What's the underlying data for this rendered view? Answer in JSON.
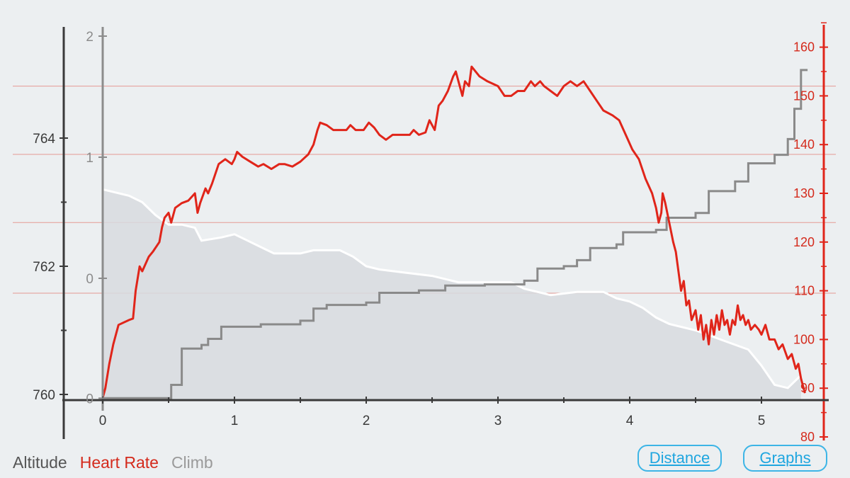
{
  "legend": {
    "altitude": {
      "label": "Altitude",
      "color": "#555555"
    },
    "heart_rate": {
      "label": "Heart Rate",
      "color": "#d42a1c"
    },
    "climb": {
      "label": "Climb",
      "color": "#9a9a9a"
    }
  },
  "buttons": {
    "distance": "Distance",
    "graphs": "Graphs"
  },
  "chart_data": {
    "type": "line",
    "title": "",
    "xlabel": "",
    "x_ticks": [
      "0",
      "1",
      "2",
      "3",
      "4",
      "5"
    ],
    "xlim": [
      0,
      5.35
    ],
    "axes": {
      "altitude": {
        "ticks": [
          "760",
          "762",
          "764"
        ],
        "ylim": [
          760,
          765
        ]
      },
      "climb": {
        "ticks": [
          "0",
          "0",
          "1",
          "2"
        ],
        "ylim": [
          -0.98,
          2
        ]
      },
      "heart_rate": {
        "ticks": [
          "80",
          "90",
          "100",
          "110",
          "120",
          "130",
          "140",
          "150",
          "160"
        ],
        "ylim": [
          80,
          160
        ]
      }
    },
    "series": [
      {
        "name": "Altitude",
        "axis": "altitude",
        "style": "area",
        "color": "#ffffff",
        "fill": "#d8dadf",
        "points": [
          [
            0,
            763.2
          ],
          [
            0.1,
            763.15
          ],
          [
            0.2,
            763.1
          ],
          [
            0.3,
            763.0
          ],
          [
            0.4,
            762.8
          ],
          [
            0.5,
            762.65
          ],
          [
            0.6,
            762.65
          ],
          [
            0.7,
            762.6
          ],
          [
            0.75,
            762.4
          ],
          [
            0.9,
            762.45
          ],
          [
            1.0,
            762.5
          ],
          [
            1.1,
            762.4
          ],
          [
            1.2,
            762.3
          ],
          [
            1.3,
            762.2
          ],
          [
            1.4,
            762.2
          ],
          [
            1.5,
            762.2
          ],
          [
            1.6,
            762.25
          ],
          [
            1.8,
            762.25
          ],
          [
            1.9,
            762.15
          ],
          [
            2.0,
            762.0
          ],
          [
            2.1,
            761.95
          ],
          [
            2.3,
            761.9
          ],
          [
            2.5,
            761.85
          ],
          [
            2.7,
            761.75
          ],
          [
            3.0,
            761.75
          ],
          [
            3.1,
            761.75
          ],
          [
            3.2,
            761.65
          ],
          [
            3.4,
            761.55
          ],
          [
            3.6,
            761.6
          ],
          [
            3.8,
            761.6
          ],
          [
            3.9,
            761.5
          ],
          [
            4.0,
            761.45
          ],
          [
            4.1,
            761.35
          ],
          [
            4.2,
            761.2
          ],
          [
            4.3,
            761.1
          ],
          [
            4.5,
            761.0
          ],
          [
            4.7,
            760.85
          ],
          [
            4.9,
            760.7
          ],
          [
            5.0,
            760.45
          ],
          [
            5.1,
            760.15
          ],
          [
            5.2,
            760.1
          ],
          [
            5.3,
            760.3
          ]
        ]
      },
      {
        "name": "Climb",
        "axis": "climb",
        "style": "line",
        "color": "#8a8a8a",
        "points": [
          [
            0,
            -0.99
          ],
          [
            0.48,
            -0.99
          ],
          [
            0.52,
            -0.88
          ],
          [
            0.6,
            -0.58
          ],
          [
            0.75,
            -0.55
          ],
          [
            0.8,
            -0.5
          ],
          [
            0.9,
            -0.4
          ],
          [
            1.2,
            -0.38
          ],
          [
            1.5,
            -0.35
          ],
          [
            1.6,
            -0.25
          ],
          [
            1.7,
            -0.22
          ],
          [
            2.0,
            -0.2
          ],
          [
            2.1,
            -0.12
          ],
          [
            2.4,
            -0.1
          ],
          [
            2.6,
            -0.06
          ],
          [
            2.9,
            -0.05
          ],
          [
            3.2,
            -0.02
          ],
          [
            3.3,
            0.08
          ],
          [
            3.5,
            0.1
          ],
          [
            3.6,
            0.15
          ],
          [
            3.7,
            0.25
          ],
          [
            3.9,
            0.28
          ],
          [
            3.95,
            0.38
          ],
          [
            4.2,
            0.4
          ],
          [
            4.28,
            0.5
          ],
          [
            4.5,
            0.54
          ],
          [
            4.6,
            0.72
          ],
          [
            4.8,
            0.8
          ],
          [
            4.9,
            0.95
          ],
          [
            5.1,
            1.02
          ],
          [
            5.2,
            1.15
          ],
          [
            5.25,
            1.4
          ],
          [
            5.3,
            1.72
          ],
          [
            5.35,
            1.72
          ]
        ]
      },
      {
        "name": "Heart Rate",
        "axis": "heart_rate",
        "style": "line",
        "color": "#e0251a",
        "points": [
          [
            0,
            88
          ],
          [
            0.05,
            95
          ],
          [
            0.12,
            103
          ],
          [
            0.23,
            104
          ],
          [
            0.28,
            117
          ],
          [
            0.35,
            118
          ],
          [
            0.4,
            120
          ],
          [
            0.5,
            126
          ],
          [
            0.6,
            128
          ],
          [
            0.7,
            130
          ],
          [
            0.72,
            126
          ],
          [
            0.8,
            132
          ],
          [
            0.9,
            136
          ],
          [
            1.0,
            138
          ],
          [
            1.05,
            137
          ],
          [
            1.1,
            136
          ],
          [
            1.2,
            135
          ],
          [
            1.3,
            136
          ],
          [
            1.4,
            136
          ],
          [
            1.5,
            136
          ],
          [
            1.6,
            140
          ],
          [
            1.65,
            144
          ],
          [
            1.7,
            144
          ],
          [
            1.75,
            143
          ],
          [
            1.8,
            143
          ],
          [
            1.9,
            143
          ],
          [
            2.0,
            142
          ],
          [
            2.05,
            144
          ],
          [
            2.1,
            143
          ],
          [
            2.2,
            143
          ],
          [
            2.3,
            143
          ],
          [
            2.4,
            143
          ],
          [
            2.45,
            144
          ],
          [
            2.5,
            148
          ],
          [
            2.6,
            155
          ],
          [
            2.65,
            153
          ],
          [
            2.7,
            156
          ],
          [
            2.75,
            155
          ],
          [
            2.8,
            154
          ],
          [
            2.9,
            153
          ],
          [
            3.0,
            151
          ],
          [
            3.1,
            151
          ],
          [
            3.2,
            152
          ],
          [
            3.3,
            153
          ],
          [
            3.35,
            152
          ],
          [
            3.4,
            150
          ],
          [
            3.5,
            152
          ],
          [
            3.6,
            153
          ],
          [
            3.7,
            152
          ],
          [
            3.8,
            148
          ],
          [
            3.9,
            146
          ],
          [
            4.0,
            141
          ],
          [
            4.1,
            136
          ],
          [
            4.2,
            130
          ],
          [
            4.22,
            125
          ],
          [
            4.25,
            128
          ],
          [
            4.3,
            120
          ],
          [
            4.35,
            115
          ],
          [
            4.4,
            108
          ],
          [
            4.45,
            106
          ],
          [
            4.5,
            104
          ],
          [
            4.55,
            101
          ],
          [
            4.6,
            100
          ],
          [
            4.65,
            104
          ],
          [
            4.7,
            103
          ],
          [
            4.75,
            104
          ],
          [
            4.8,
            105
          ],
          [
            4.85,
            103
          ],
          [
            4.9,
            104
          ],
          [
            4.95,
            103
          ],
          [
            5.0,
            102
          ],
          [
            5.05,
            100
          ],
          [
            5.1,
            99
          ],
          [
            5.15,
            98
          ],
          [
            5.2,
            97
          ],
          [
            5.25,
            95
          ],
          [
            5.3,
            92
          ],
          [
            5.33,
            89
          ]
        ]
      }
    ],
    "hr_points_dense": [
      [
        0,
        88
      ],
      [
        0.02,
        90
      ],
      [
        0.05,
        95
      ],
      [
        0.08,
        99
      ],
      [
        0.12,
        103
      ],
      [
        0.2,
        104
      ],
      [
        0.23,
        104.3
      ],
      [
        0.25,
        110
      ],
      [
        0.28,
        115
      ],
      [
        0.3,
        114
      ],
      [
        0.35,
        117
      ],
      [
        0.38,
        118
      ],
      [
        0.43,
        120
      ],
      [
        0.45,
        123
      ],
      [
        0.47,
        125
      ],
      [
        0.5,
        126
      ],
      [
        0.52,
        124
      ],
      [
        0.55,
        127
      ],
      [
        0.6,
        128
      ],
      [
        0.65,
        128.5
      ],
      [
        0.7,
        130
      ],
      [
        0.72,
        126
      ],
      [
        0.74,
        128
      ],
      [
        0.78,
        131
      ],
      [
        0.8,
        130
      ],
      [
        0.83,
        132
      ],
      [
        0.88,
        136
      ],
      [
        0.93,
        137
      ],
      [
        0.98,
        136
      ],
      [
        1.0,
        137
      ],
      [
        1.02,
        138.5
      ],
      [
        1.06,
        137.5
      ],
      [
        1.12,
        136.5
      ],
      [
        1.18,
        135.5
      ],
      [
        1.22,
        136
      ],
      [
        1.28,
        135
      ],
      [
        1.34,
        136
      ],
      [
        1.38,
        136
      ],
      [
        1.44,
        135.5
      ],
      [
        1.5,
        136.5
      ],
      [
        1.56,
        138
      ],
      [
        1.6,
        140
      ],
      [
        1.63,
        143
      ],
      [
        1.65,
        144.5
      ],
      [
        1.7,
        144
      ],
      [
        1.75,
        143
      ],
      [
        1.8,
        143
      ],
      [
        1.85,
        143
      ],
      [
        1.88,
        144
      ],
      [
        1.92,
        143
      ],
      [
        1.98,
        143
      ],
      [
        2.02,
        144.5
      ],
      [
        2.06,
        143.5
      ],
      [
        2.1,
        142
      ],
      [
        2.15,
        141
      ],
      [
        2.2,
        142
      ],
      [
        2.27,
        142
      ],
      [
        2.33,
        142
      ],
      [
        2.36,
        143
      ],
      [
        2.4,
        142
      ],
      [
        2.45,
        142.5
      ],
      [
        2.48,
        145
      ],
      [
        2.52,
        143
      ],
      [
        2.55,
        148
      ],
      [
        2.58,
        149
      ],
      [
        2.62,
        151
      ],
      [
        2.66,
        154
      ],
      [
        2.68,
        155
      ],
      [
        2.7,
        153
      ],
      [
        2.73,
        150
      ],
      [
        2.75,
        153
      ],
      [
        2.78,
        152
      ],
      [
        2.8,
        156
      ],
      [
        2.86,
        154
      ],
      [
        2.92,
        153
      ],
      [
        3.0,
        152
      ],
      [
        3.05,
        150
      ],
      [
        3.1,
        150
      ],
      [
        3.15,
        151
      ],
      [
        3.2,
        151
      ],
      [
        3.25,
        153
      ],
      [
        3.28,
        152
      ],
      [
        3.32,
        153
      ],
      [
        3.35,
        152
      ],
      [
        3.4,
        151
      ],
      [
        3.45,
        150
      ],
      [
        3.5,
        152
      ],
      [
        3.55,
        153
      ],
      [
        3.6,
        152
      ],
      [
        3.65,
        153
      ],
      [
        3.7,
        151
      ],
      [
        3.75,
        149
      ],
      [
        3.8,
        147
      ],
      [
        3.87,
        146
      ],
      [
        3.92,
        145
      ],
      [
        3.97,
        142
      ],
      [
        4.02,
        139
      ],
      [
        4.07,
        137
      ],
      [
        4.12,
        133
      ],
      [
        4.17,
        130
      ],
      [
        4.2,
        127
      ],
      [
        4.22,
        124
      ],
      [
        4.24,
        126
      ],
      [
        4.25,
        130
      ],
      [
        4.27,
        128
      ],
      [
        4.3,
        124
      ],
      [
        4.33,
        120
      ],
      [
        4.35,
        118
      ],
      [
        4.37,
        114
      ],
      [
        4.39,
        110
      ],
      [
        4.41,
        112
      ],
      [
        4.43,
        107
      ],
      [
        4.45,
        108
      ],
      [
        4.47,
        104
      ],
      [
        4.5,
        106
      ],
      [
        4.52,
        102
      ],
      [
        4.54,
        105
      ],
      [
        4.56,
        100
      ],
      [
        4.58,
        103
      ],
      [
        4.6,
        99
      ],
      [
        4.62,
        104
      ],
      [
        4.64,
        101
      ],
      [
        4.66,
        105
      ],
      [
        4.68,
        102
      ],
      [
        4.7,
        106
      ],
      [
        4.72,
        103
      ],
      [
        4.74,
        104
      ],
      [
        4.76,
        101
      ],
      [
        4.78,
        104
      ],
      [
        4.8,
        103
      ],
      [
        4.82,
        107
      ],
      [
        4.84,
        104
      ],
      [
        4.86,
        105
      ],
      [
        4.88,
        103
      ],
      [
        4.9,
        104
      ],
      [
        4.92,
        102
      ],
      [
        4.95,
        103
      ],
      [
        4.98,
        102
      ],
      [
        5.0,
        101
      ],
      [
        5.03,
        103
      ],
      [
        5.06,
        100
      ],
      [
        5.1,
        100
      ],
      [
        5.13,
        98
      ],
      [
        5.16,
        99
      ],
      [
        5.2,
        96
      ],
      [
        5.23,
        97
      ],
      [
        5.26,
        94
      ],
      [
        5.28,
        95
      ],
      [
        5.3,
        92
      ],
      [
        5.33,
        89
      ]
    ]
  }
}
